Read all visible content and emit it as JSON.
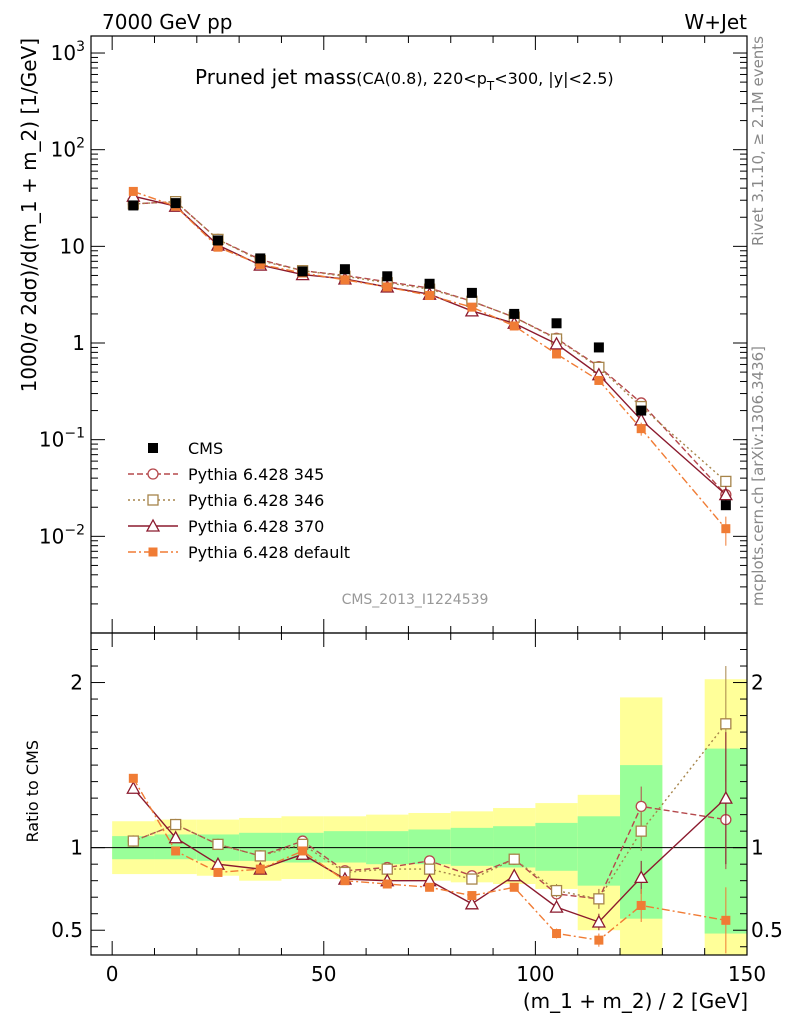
{
  "header": {
    "left": "7000 GeV pp",
    "right": "W+Jet",
    "side_top": "Rivet 3.1.10, ≥ 2.1M events",
    "side_bottom": "mcplots.cern.ch [arXiv:1306.3436]",
    "analysis_id": "CMS_2013_I1224539"
  },
  "chart_data": [
    {
      "type": "line",
      "panel": "main",
      "title_main": "Pruned jet mass",
      "title_sub": "(CA(0.8), 220<p",
      "title_sub_sub": "T",
      "title_sub_end": "<300, |y|<2.5)",
      "xlabel": "",
      "ylabel": "1000/σ 2dσ)/d(m_1 + m_2) [1/GeV]",
      "xlim": [
        -5,
        150
      ],
      "ylim": [
        0.001,
        1500
      ],
      "log_y": true,
      "x_ticks": [
        0,
        50,
        100,
        150
      ],
      "y_ticks": [
        {
          "value": 0.01,
          "base": "10",
          "exp": "−2"
        },
        {
          "value": 0.1,
          "base": "10",
          "exp": "−1"
        },
        {
          "value": 1,
          "base": "1",
          "exp": ""
        },
        {
          "value": 10,
          "base": "10",
          "exp": ""
        },
        {
          "value": 100,
          "base": "10",
          "exp": "2"
        },
        {
          "value": 1000,
          "base": "10",
          "exp": "3"
        }
      ],
      "x": [
        5,
        15,
        25,
        35,
        45,
        55,
        65,
        75,
        85,
        95,
        105,
        115,
        125,
        145
      ],
      "series": [
        {
          "name": "CMS",
          "color": "#000000",
          "style": "data",
          "values": [
            26.5,
            28,
            11.5,
            7.5,
            5.5,
            5.8,
            4.9,
            4.1,
            3.3,
            2.0,
            1.6,
            0.9,
            0.2,
            0.021
          ],
          "errors": [
            0,
            0,
            0,
            0,
            0,
            0,
            0,
            0,
            0,
            0,
            0,
            0,
            0,
            0
          ]
        },
        {
          "name": "Pythia 6.428 345",
          "color": "#b5484c",
          "dash": "6,3",
          "marker": "circle",
          "values": [
            27.5,
            29,
            11.8,
            7.3,
            5.6,
            5.0,
            4.3,
            3.7,
            2.7,
            1.85,
            1.12,
            0.57,
            0.24,
            0.027
          ],
          "errors": [
            0,
            0,
            0,
            0,
            0,
            0,
            0,
            0,
            0,
            0,
            0.05,
            0.05,
            0.02,
            0.005
          ]
        },
        {
          "name": "Pythia 6.428 346",
          "color": "#a6844a",
          "dash": "2,3",
          "marker": "square",
          "values": [
            27.5,
            29,
            11.8,
            7.1,
            5.6,
            4.9,
            4.2,
            3.6,
            2.7,
            1.85,
            1.1,
            0.56,
            0.22,
            0.037
          ],
          "errors": [
            0,
            0,
            0,
            0,
            0,
            0,
            0,
            0,
            0,
            0,
            0.05,
            0.05,
            0.02,
            0.005
          ]
        },
        {
          "name": "Pythia 6.428 370",
          "color": "#8b1a2e",
          "dash": "",
          "marker": "triangle",
          "values": [
            33,
            26,
            10.3,
            6.4,
            5.1,
            4.6,
            3.8,
            3.2,
            2.15,
            1.6,
            0.98,
            0.47,
            0.16,
            0.027
          ],
          "errors": [
            0,
            0,
            0,
            0,
            0,
            0,
            0,
            0,
            0,
            0,
            0.05,
            0.04,
            0.02,
            0.006
          ]
        },
        {
          "name": "Pythia 6.428 default",
          "color": "#f07c35",
          "dash": "8,3,2,3",
          "marker": "filled-square",
          "values": [
            37,
            26,
            9.8,
            6.5,
            5.3,
            4.5,
            3.8,
            3.1,
            2.35,
            1.5,
            0.77,
            0.41,
            0.13,
            0.012
          ],
          "errors": [
            0,
            0,
            0,
            0,
            0,
            0,
            0,
            0,
            0,
            0,
            0.05,
            0.04,
            0.02,
            0.004
          ]
        }
      ]
    },
    {
      "type": "line",
      "panel": "ratio",
      "xlabel": "(m_1 + m_2) / 2 [GeV]",
      "ylabel": "Ratio to CMS",
      "xlim": [
        -5,
        150
      ],
      "ylim": [
        0.35,
        2.3
      ],
      "x_ticks": [
        0,
        50,
        100,
        150
      ],
      "y_ticks": [
        0.5,
        1,
        2
      ],
      "bins": [
        {
          "lo": 0,
          "hi": 10,
          "g_lo": 0.93,
          "g_hi": 1.07,
          "y_lo": 0.84,
          "y_hi": 1.16
        },
        {
          "lo": 10,
          "hi": 20,
          "g_lo": 0.93,
          "g_hi": 1.08,
          "y_lo": 0.84,
          "y_hi": 1.17
        },
        {
          "lo": 20,
          "hi": 30,
          "g_lo": 0.92,
          "g_hi": 1.08,
          "y_lo": 0.83,
          "y_hi": 1.17
        },
        {
          "lo": 30,
          "hi": 40,
          "g_lo": 0.92,
          "g_hi": 1.09,
          "y_lo": 0.8,
          "y_hi": 1.18
        },
        {
          "lo": 40,
          "hi": 50,
          "g_lo": 0.91,
          "g_hi": 1.09,
          "y_lo": 0.81,
          "y_hi": 1.19
        },
        {
          "lo": 50,
          "hi": 60,
          "g_lo": 0.91,
          "g_hi": 1.1,
          "y_lo": 0.81,
          "y_hi": 1.19
        },
        {
          "lo": 60,
          "hi": 70,
          "g_lo": 0.9,
          "g_hi": 1.1,
          "y_lo": 0.8,
          "y_hi": 1.2
        },
        {
          "lo": 70,
          "hi": 80,
          "g_lo": 0.9,
          "g_hi": 1.11,
          "y_lo": 0.8,
          "y_hi": 1.21
        },
        {
          "lo": 80,
          "hi": 90,
          "g_lo": 0.89,
          "g_hi": 1.12,
          "y_lo": 0.79,
          "y_hi": 1.22
        },
        {
          "lo": 90,
          "hi": 100,
          "g_lo": 0.88,
          "g_hi": 1.13,
          "y_lo": 0.78,
          "y_hi": 1.24
        },
        {
          "lo": 100,
          "hi": 110,
          "g_lo": 0.86,
          "g_hi": 1.15,
          "y_lo": 0.75,
          "y_hi": 1.27
        },
        {
          "lo": 110,
          "hi": 120,
          "g_lo": 0.77,
          "g_hi": 1.19,
          "y_lo": 0.5,
          "y_hi": 1.32
        },
        {
          "lo": 120,
          "hi": 130,
          "g_lo": 0.57,
          "g_hi": 1.5,
          "y_lo": 0.35,
          "y_hi": 1.91
        },
        {
          "lo": 140,
          "hi": 150,
          "g_lo": 0.48,
          "g_hi": 1.6,
          "y_lo": 0.35,
          "y_hi": 2.02
        }
      ],
      "x": [
        5,
        15,
        25,
        35,
        45,
        55,
        65,
        75,
        85,
        95,
        105,
        115,
        125,
        145
      ],
      "series": [
        {
          "name": "Pythia 6.428 345",
          "color": "#b5484c",
          "dash": "6,3",
          "marker": "circle",
          "values": [
            1.04,
            1.14,
            1.02,
            0.95,
            1.04,
            0.86,
            0.88,
            0.92,
            0.83,
            0.93,
            0.72,
            0.69,
            1.25,
            1.17
          ],
          "errors": [
            0,
            0,
            0,
            0,
            0,
            0,
            0,
            0,
            0.02,
            0.02,
            0.04,
            0.06,
            0.12,
            0.3
          ]
        },
        {
          "name": "Pythia 6.428 346",
          "color": "#a6844a",
          "dash": "2,3",
          "marker": "square",
          "values": [
            1.04,
            1.14,
            1.02,
            0.95,
            1.02,
            0.85,
            0.87,
            0.87,
            0.81,
            0.93,
            0.74,
            0.69,
            1.1,
            1.75
          ],
          "errors": [
            0,
            0,
            0,
            0,
            0,
            0,
            0,
            0,
            0.02,
            0.02,
            0.04,
            0.06,
            0.12,
            0.35
          ]
        },
        {
          "name": "Pythia 6.428 370",
          "color": "#8b1a2e",
          "dash": "",
          "marker": "triangle",
          "values": [
            1.36,
            1.06,
            0.9,
            0.87,
            0.96,
            0.81,
            0.8,
            0.8,
            0.66,
            0.83,
            0.64,
            0.55,
            0.82,
            1.3
          ],
          "errors": [
            0,
            0,
            0,
            0,
            0,
            0,
            0,
            0,
            0.02,
            0.02,
            0.03,
            0.05,
            0.1,
            0.4
          ]
        },
        {
          "name": "Pythia 6.428 default",
          "color": "#f07c35",
          "dash": "8,3,2,3",
          "marker": "filled-square",
          "values": [
            1.42,
            0.98,
            0.85,
            0.87,
            0.98,
            0.8,
            0.78,
            0.76,
            0.71,
            0.76,
            0.48,
            0.44,
            0.65,
            0.56
          ],
          "errors": [
            0,
            0,
            0,
            0,
            0,
            0,
            0,
            0,
            0.02,
            0.02,
            0.03,
            0.04,
            0.1,
            0.2
          ]
        }
      ]
    }
  ]
}
